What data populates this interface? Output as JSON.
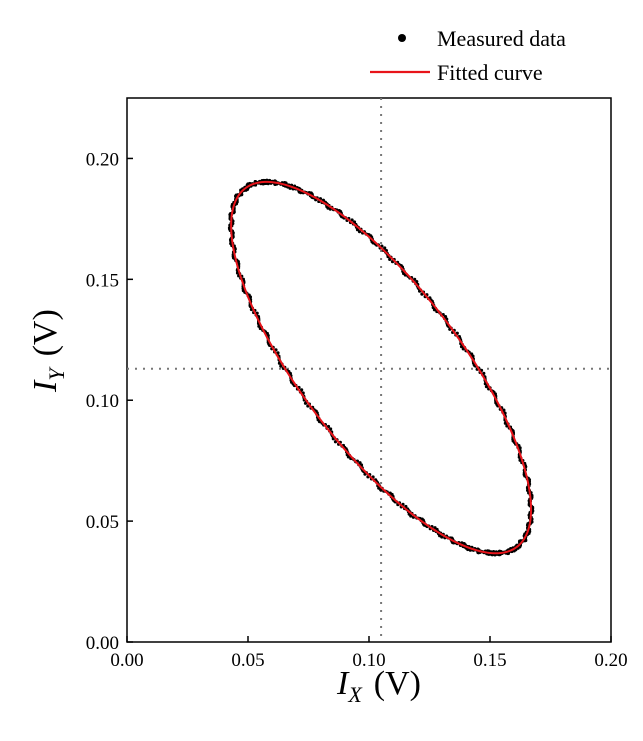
{
  "chart_data": {
    "type": "scatter",
    "title": "",
    "xlabel": {
      "symbol": "I",
      "subscript": "X",
      "unit": "(V)"
    },
    "ylabel": {
      "symbol": "I",
      "subscript": "Y",
      "unit": "(V)"
    },
    "xlim": [
      0.0,
      0.2
    ],
    "ylim": [
      0.0,
      0.225
    ],
    "xticks": [
      "0.00",
      "0.05",
      "0.10",
      "0.15",
      "0.20"
    ],
    "yticks": [
      "0.00",
      "0.05",
      "0.10",
      "0.15",
      "0.20"
    ],
    "grid": false,
    "legend_position": "top-right",
    "reference_lines": {
      "x": 0.105,
      "y": 0.113
    },
    "series": [
      {
        "name": "Measured data",
        "kind": "points",
        "color": "#000000",
        "ellipse": {
          "cx": 0.105,
          "cy": 0.1135,
          "semi_major": 0.093,
          "semi_minor": 0.033,
          "angle_deg": -52.9
        }
      },
      {
        "name": "Fitted curve",
        "kind": "line",
        "color": "#e8141a",
        "ellipse": {
          "cx": 0.105,
          "cy": 0.1135,
          "semi_major": 0.093,
          "semi_minor": 0.033,
          "angle_deg": -52.9
        }
      }
    ]
  }
}
